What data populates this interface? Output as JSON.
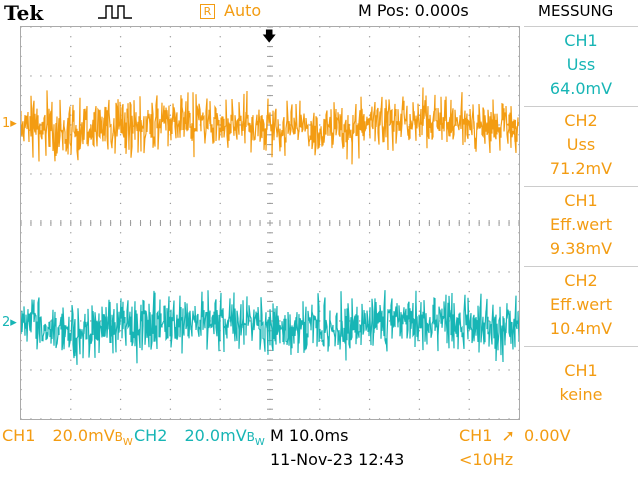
{
  "header": {
    "brand": "Tek",
    "trigger_mode_box": "R",
    "trigger_mode": "Auto",
    "position": "M Pos: 0.000s",
    "menu_title": "MESSUNG",
    "trigger_status_icon": "trigger-run-pulse-icon"
  },
  "measurements": [
    {
      "channel": "CH1",
      "type": "Uss",
      "value": "64.0mV"
    },
    {
      "channel": "CH2",
      "type": "Uss",
      "value": "71.2mV"
    },
    {
      "channel": "CH1",
      "type": "Eff.wert",
      "value": "9.38mV"
    },
    {
      "channel": "CH2",
      "type": "Eff.wert",
      "value": "10.4mV"
    },
    {
      "channel": "CH1",
      "type": "keine"
    }
  ],
  "markers": {
    "ch1": "1",
    "ch2": "2"
  },
  "footer": {
    "ch1_label": "CH1",
    "ch1_scale": "20.0mV",
    "ch1_bw": "B",
    "ch1_bw_sub": "W",
    "ch2_label": "CH2",
    "ch2_scale": "20.0mV",
    "ch2_bw": "B",
    "ch2_bw_sub": "W",
    "timebase": "M 10.0ms",
    "trigger_source": "CH1",
    "trigger_level": "0.00V",
    "datetime": "11-Nov-23 12:43",
    "frequency": "<10Hz"
  },
  "colors": {
    "ch1": "#f39c12",
    "ch2": "#17b5b5",
    "grid": "#9a9a9a"
  }
}
